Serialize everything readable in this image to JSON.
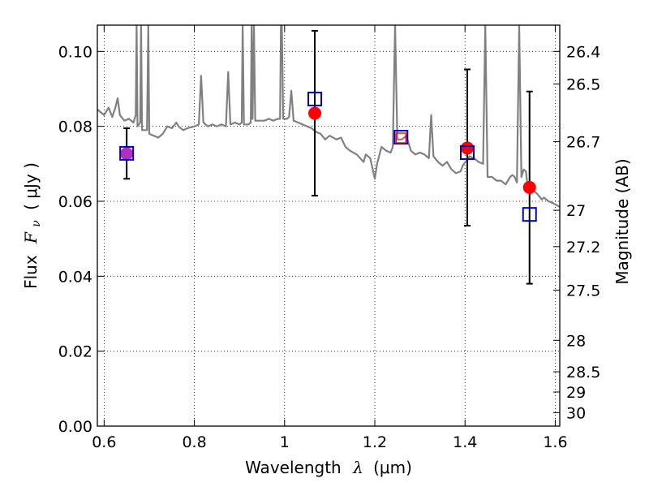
{
  "chart_data": {
    "type": "scatter",
    "xlabel": "Wavelength",
    "xlabel_symbol": "λ",
    "xlabel_unit": "(μm)",
    "ylabel": "Flux",
    "ylabel_symbol": "F",
    "ylabel_subscript": "ν",
    "ylabel_unit": "( μJy )",
    "y2label": "Magnitude (AB)",
    "xlim": [
      0.585,
      1.61
    ],
    "ylim": [
      0.0,
      0.107
    ],
    "grid": true,
    "x_ticks": [
      {
        "value": 0.6,
        "label": "0.6"
      },
      {
        "value": 0.8,
        "label": "0.8"
      },
      {
        "value": 1.0,
        "label": "1"
      },
      {
        "value": 1.2,
        "label": "1.2"
      },
      {
        "value": 1.4,
        "label": "1.4"
      },
      {
        "value": 1.6,
        "label": "1.6"
      }
    ],
    "y_ticks": [
      {
        "value": 0.0,
        "label": "0.00"
      },
      {
        "value": 0.02,
        "label": "0.02"
      },
      {
        "value": 0.04,
        "label": "0.04"
      },
      {
        "value": 0.06,
        "label": "0.06"
      },
      {
        "value": 0.08,
        "label": "0.08"
      },
      {
        "value": 0.1,
        "label": "0.10"
      }
    ],
    "y2_ticks": [
      {
        "label": "26.4",
        "flux": 0.1
      },
      {
        "label": "26.5",
        "flux": 0.0913
      },
      {
        "label": "26.7",
        "flux": 0.0759
      },
      {
        "label": "27",
        "flux": 0.0576
      },
      {
        "label": "27.2",
        "flux": 0.0479
      },
      {
        "label": "27.5",
        "flux": 0.0363
      },
      {
        "label": "28",
        "flux": 0.0229
      },
      {
        "label": "28.5",
        "flux": 0.0145
      },
      {
        "label": "29",
        "flux": 0.0091
      },
      {
        "label": "30",
        "flux": 0.0036
      }
    ],
    "series": [
      {
        "kind": "model_spectrum",
        "color": "#808080",
        "points": [
          [
            0.585,
            0.0845
          ],
          [
            0.6,
            0.083
          ],
          [
            0.61,
            0.085
          ],
          [
            0.618,
            0.0825
          ],
          [
            0.625,
            0.085
          ],
          [
            0.63,
            0.0875
          ],
          [
            0.635,
            0.083
          ],
          [
            0.645,
            0.0815
          ],
          [
            0.655,
            0.082
          ],
          [
            0.665,
            0.081
          ],
          [
            0.67,
            0.083
          ],
          [
            0.672,
            0.107
          ],
          [
            0.674,
            0.08
          ],
          [
            0.68,
            0.081
          ],
          [
            0.682,
            0.107
          ],
          [
            0.684,
            0.079
          ],
          [
            0.695,
            0.079
          ],
          [
            0.698,
            0.107
          ],
          [
            0.7,
            0.078
          ],
          [
            0.71,
            0.0775
          ],
          [
            0.72,
            0.077
          ],
          [
            0.73,
            0.078
          ],
          [
            0.74,
            0.08
          ],
          [
            0.75,
            0.0795
          ],
          [
            0.76,
            0.081
          ],
          [
            0.765,
            0.08
          ],
          [
            0.775,
            0.079
          ],
          [
            0.785,
            0.0795
          ],
          [
            0.8,
            0.08
          ],
          [
            0.81,
            0.0805
          ],
          [
            0.815,
            0.0935
          ],
          [
            0.82,
            0.081
          ],
          [
            0.83,
            0.08
          ],
          [
            0.84,
            0.0805
          ],
          [
            0.85,
            0.08
          ],
          [
            0.86,
            0.0805
          ],
          [
            0.87,
            0.08
          ],
          [
            0.875,
            0.0945
          ],
          [
            0.88,
            0.0805
          ],
          [
            0.89,
            0.081
          ],
          [
            0.9,
            0.0805
          ],
          [
            0.905,
            0.081
          ],
          [
            0.907,
            0.107
          ],
          [
            0.91,
            0.0805
          ],
          [
            0.92,
            0.0805
          ],
          [
            0.925,
            0.081
          ],
          [
            0.927,
            0.107
          ],
          [
            0.929,
            0.082
          ],
          [
            0.932,
            0.107
          ],
          [
            0.935,
            0.0815
          ],
          [
            0.945,
            0.0815
          ],
          [
            0.955,
            0.0815
          ],
          [
            0.965,
            0.082
          ],
          [
            0.975,
            0.0815
          ],
          [
            0.985,
            0.082
          ],
          [
            0.99,
            0.082
          ],
          [
            0.992,
            0.107
          ],
          [
            0.994,
            0.107
          ],
          [
            0.997,
            0.082
          ],
          [
            1.005,
            0.082
          ],
          [
            1.01,
            0.0825
          ],
          [
            1.015,
            0.0895
          ],
          [
            1.02,
            0.0815
          ],
          [
            1.03,
            0.081
          ],
          [
            1.04,
            0.0805
          ],
          [
            1.05,
            0.08
          ],
          [
            1.06,
            0.0795
          ],
          [
            1.07,
            0.0785
          ],
          [
            1.08,
            0.078
          ],
          [
            1.09,
            0.0765
          ],
          [
            1.1,
            0.0775
          ],
          [
            1.115,
            0.0765
          ],
          [
            1.125,
            0.077
          ],
          [
            1.135,
            0.0745
          ],
          [
            1.145,
            0.0735
          ],
          [
            1.16,
            0.0725
          ],
          [
            1.175,
            0.0705
          ],
          [
            1.18,
            0.0725
          ],
          [
            1.19,
            0.0715
          ],
          [
            1.2,
            0.066
          ],
          [
            1.205,
            0.07
          ],
          [
            1.215,
            0.0745
          ],
          [
            1.225,
            0.0735
          ],
          [
            1.235,
            0.073
          ],
          [
            1.24,
            0.0745
          ],
          [
            1.245,
            0.107
          ],
          [
            1.25,
            0.0765
          ],
          [
            1.26,
            0.0765
          ],
          [
            1.27,
            0.0775
          ],
          [
            1.28,
            0.0735
          ],
          [
            1.29,
            0.0725
          ],
          [
            1.3,
            0.073
          ],
          [
            1.31,
            0.0725
          ],
          [
            1.32,
            0.0715
          ],
          [
            1.325,
            0.083
          ],
          [
            1.33,
            0.072
          ],
          [
            1.34,
            0.0705
          ],
          [
            1.35,
            0.0695
          ],
          [
            1.36,
            0.0705
          ],
          [
            1.37,
            0.0685
          ],
          [
            1.38,
            0.0675
          ],
          [
            1.39,
            0.068
          ],
          [
            1.395,
            0.0695
          ],
          [
            1.41,
            0.072
          ],
          [
            1.42,
            0.0715
          ],
          [
            1.43,
            0.0705
          ],
          [
            1.44,
            0.07
          ],
          [
            1.445,
            0.107
          ],
          [
            1.45,
            0.0665
          ],
          [
            1.46,
            0.0665
          ],
          [
            1.47,
            0.0655
          ],
          [
            1.48,
            0.0655
          ],
          [
            1.49,
            0.0645
          ],
          [
            1.5,
            0.0665
          ],
          [
            1.505,
            0.067
          ],
          [
            1.51,
            0.0665
          ],
          [
            1.515,
            0.065
          ],
          [
            1.52,
            0.107
          ],
          [
            1.525,
            0.0665
          ],
          [
            1.53,
            0.0685
          ],
          [
            1.535,
            0.068
          ],
          [
            1.54,
            0.0625
          ],
          [
            1.545,
            0.064
          ],
          [
            1.55,
            0.063
          ],
          [
            1.56,
            0.062
          ],
          [
            1.57,
            0.0605
          ],
          [
            1.575,
            0.061
          ],
          [
            1.585,
            0.06
          ],
          [
            1.595,
            0.0595
          ],
          [
            1.61,
            0.0585
          ]
        ]
      },
      {
        "kind": "observed",
        "marker": "circle",
        "color": "#ff0000",
        "points": [
          {
            "x": 1.067,
            "y": 0.0835,
            "yerr_low": 0.0615,
            "yerr_high": 0.1055
          },
          {
            "x": 1.405,
            "y": 0.0742,
            "yerr_low": 0.0535,
            "yerr_high": 0.0952
          },
          {
            "x": 1.543,
            "y": 0.0637,
            "yerr_low": 0.038,
            "yerr_high": 0.0893
          }
        ]
      },
      {
        "kind": "observed_optical",
        "marker": "circle",
        "color": "#b030c0",
        "points": [
          {
            "x": 0.65,
            "y": 0.0727,
            "yerr_low": 0.066,
            "yerr_high": 0.0795
          }
        ]
      },
      {
        "kind": "model_photometry",
        "marker": "square",
        "color": "#0000cc",
        "points": [
          {
            "x": 0.65,
            "y": 0.0728
          },
          {
            "x": 1.067,
            "y": 0.0873
          },
          {
            "x": 1.258,
            "y": 0.0771
          },
          {
            "x": 1.405,
            "y": 0.073
          },
          {
            "x": 1.543,
            "y": 0.0565
          }
        ]
      },
      {
        "kind": "upper_limit",
        "marker": "square",
        "color": "#ff0000",
        "points": [
          {
            "x": 1.258,
            "y": 0.0769
          }
        ]
      }
    ]
  }
}
